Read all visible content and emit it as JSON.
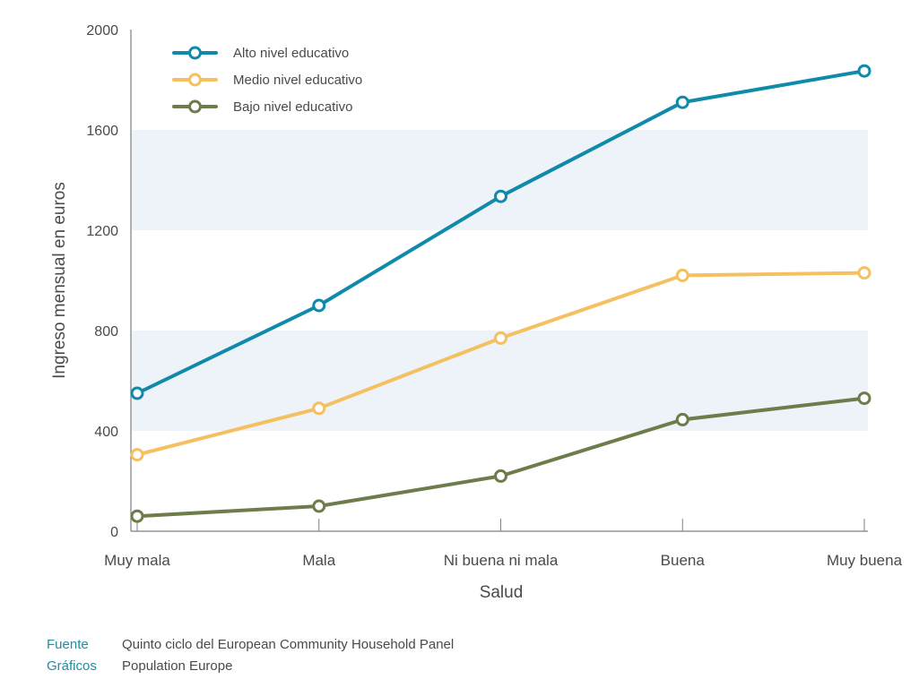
{
  "chart_data": {
    "type": "line",
    "title": "",
    "xlabel": "Salud",
    "ylabel": "Ingreso mensual en euros",
    "categories": [
      "Muy mala",
      "Mala",
      "Ni buena ni mala",
      "Buena",
      "Muy buena"
    ],
    "ylim": [
      0,
      2000
    ],
    "yticks": [
      "0",
      "400",
      "800",
      "1200",
      "1600",
      "2000"
    ],
    "grid": "alternating horizontal bands",
    "legend_position": "top-left",
    "series": [
      {
        "name": "Alto nivel educativo",
        "color": "#0f8aa8",
        "values": [
          550,
          900,
          1335,
          1710,
          1835
        ]
      },
      {
        "name": "Medio nivel educativo",
        "color": "#f5c060",
        "values": [
          305,
          490,
          770,
          1020,
          1030
        ]
      },
      {
        "name": "Bajo nivel educativo",
        "color": "#6e7b4a",
        "values": [
          60,
          100,
          220,
          445,
          530
        ]
      }
    ]
  },
  "footer": {
    "source_label": "Fuente",
    "source_text": "Quinto ciclo del European Community Household Panel",
    "graphics_label": "Gráficos",
    "graphics_text": "Population Europe"
  },
  "colors": {
    "band": "#eef2f9",
    "axis": "#808080",
    "text": "#4a4a4a"
  }
}
